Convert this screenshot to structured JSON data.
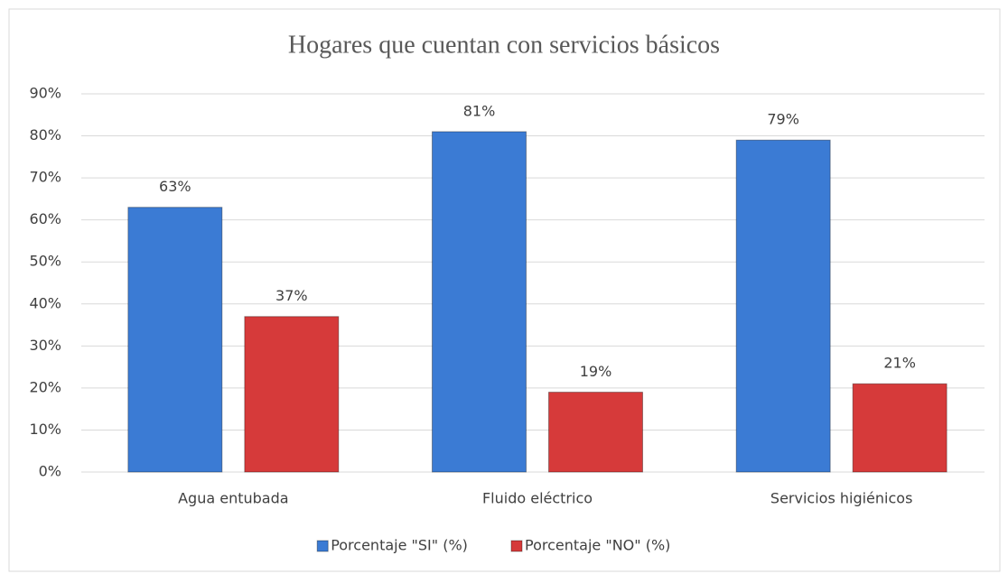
{
  "chart_data": {
    "type": "bar",
    "title": "Hogares que cuentan con servicios básicos",
    "categories": [
      "Agua entubada",
      "Fluido eléctrico",
      "Servicios higiénicos"
    ],
    "series": [
      {
        "name": "Porcentaje \"SI\" (%)",
        "color": "#3b7bd4",
        "values": [
          63,
          81,
          79
        ],
        "value_labels": [
          "63%",
          "81%",
          "79%"
        ]
      },
      {
        "name": "Porcentaje \"NO\" (%)",
        "color": "#d63a3a",
        "values": [
          37,
          19,
          21
        ],
        "value_labels": [
          "37%",
          "19%",
          "21%"
        ]
      }
    ],
    "ylim": [
      0,
      90
    ],
    "yticks": [
      {
        "value": 0,
        "label": "0%"
      },
      {
        "value": 10,
        "label": "10%"
      },
      {
        "value": 20,
        "label": "20%"
      },
      {
        "value": 30,
        "label": "30%"
      },
      {
        "value": 40,
        "label": "40%"
      },
      {
        "value": 50,
        "label": "50%"
      },
      {
        "value": 60,
        "label": "60%"
      },
      {
        "value": 70,
        "label": "70%"
      },
      {
        "value": 80,
        "label": "80%"
      },
      {
        "value": 90,
        "label": "90%"
      }
    ],
    "grid": true,
    "legend": "bottom"
  }
}
